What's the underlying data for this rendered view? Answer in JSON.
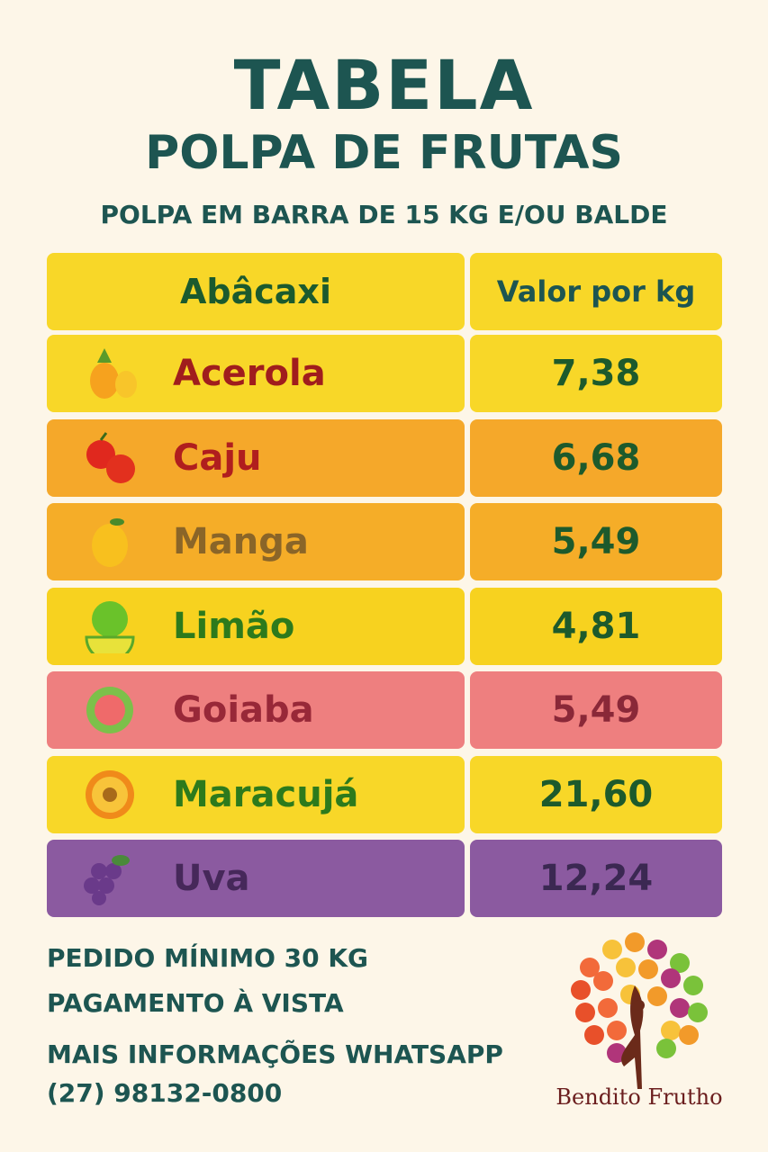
{
  "title": "TABELA",
  "subtitle": "POLPA DE FRUTAS",
  "tagline": "POLPA EM BARRA DE 15 KG E/OU BALDE",
  "table": {
    "header": {
      "name": "Abâcaxi",
      "value": "Valor por kg",
      "bg": "#f8d728"
    },
    "rows": [
      {
        "name": "Acerola",
        "value": "7,38",
        "icon": "pineapple-icon",
        "bg": "#f8d728",
        "name_color": "#a01d1d",
        "value_color": "#1d5a2c"
      },
      {
        "name": "Caju",
        "value": "6,68",
        "icon": "apple-icon",
        "bg": "#f5a82a",
        "name_color": "#b01e1e",
        "value_color": "#1d5a2c"
      },
      {
        "name": "Manga",
        "value": "5,49",
        "icon": "mango-icon",
        "bg": "#f5ad28",
        "name_color": "#8a6528",
        "value_color": "#1d5a2c"
      },
      {
        "name": "Limão",
        "value": "4,81",
        "icon": "lime-icon",
        "bg": "#f7d21f",
        "name_color": "#2d7a1c",
        "value_color": "#1d5a2c"
      },
      {
        "name": "Goiaba",
        "value": "5,49",
        "icon": "guava-icon",
        "bg": "#ee7f7f",
        "name_color": "#982838",
        "value_color": "#8a2838"
      },
      {
        "name": "Maracujá",
        "value": "21,60",
        "icon": "passion-fruit-icon",
        "bg": "#f8d728",
        "name_color": "#2d7a1c",
        "value_color": "#1d5a2c"
      },
      {
        "name": "Uva",
        "value": "12,24",
        "icon": "grape-icon",
        "bg": "#8b5aa0",
        "name_color": "#46285a",
        "value_color": "#3b2852"
      }
    ]
  },
  "footer": {
    "line1": "PEDIDO MÍNIMO 30 KG",
    "line2": "PAGAMENTO À VISTA",
    "line3": "MAIS INFORMAÇÕES WHATSAPP",
    "phone": "(27) 98132-0800"
  },
  "brand": "Bendito Frutho"
}
